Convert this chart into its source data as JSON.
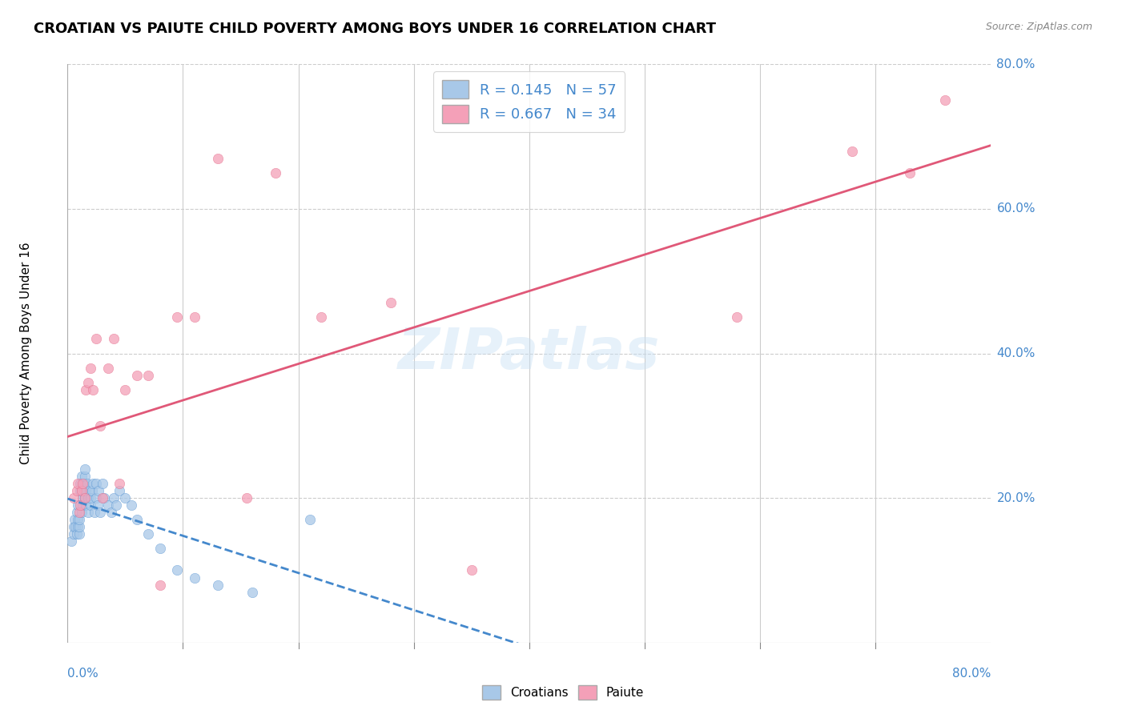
{
  "title": "CROATIAN VS PAIUTE CHILD POVERTY AMONG BOYS UNDER 16 CORRELATION CHART",
  "source": "Source: ZipAtlas.com",
  "ylabel": "Child Poverty Among Boys Under 16",
  "watermark": "ZIPatlas",
  "croatian_R": 0.145,
  "croatian_N": 57,
  "paiute_R": 0.667,
  "paiute_N": 34,
  "croatian_color": "#a8c8e8",
  "paiute_color": "#f4a0b8",
  "trendline_croatian_color": "#4488cc",
  "trendline_paiute_color": "#e05878",
  "xlim": [
    0,
    0.8
  ],
  "ylim": [
    0,
    0.8
  ],
  "xtick_positions": [
    0,
    0.8
  ],
  "xtick_labels": [
    "0.0%",
    "80.0%"
  ],
  "ytick_positions": [
    0.2,
    0.4,
    0.6,
    0.8
  ],
  "ytick_labels": [
    "20.0%",
    "40.0%",
    "60.0%",
    "80.0%"
  ],
  "grid_yticks": [
    0.2,
    0.4,
    0.6,
    0.8
  ],
  "grid_xticks": [
    0.1,
    0.2,
    0.3,
    0.4,
    0.5,
    0.6,
    0.7
  ],
  "background_color": "#ffffff",
  "grid_color": "#cccccc",
  "title_fontsize": 13,
  "label_fontsize": 11,
  "tick_color": "#4488cc",
  "legend_text_color": "#4488cc",
  "croatian_x": [
    0.003,
    0.005,
    0.005,
    0.006,
    0.007,
    0.008,
    0.008,
    0.009,
    0.009,
    0.009,
    0.01,
    0.01,
    0.01,
    0.011,
    0.011,
    0.012,
    0.012,
    0.013,
    0.013,
    0.014,
    0.014,
    0.015,
    0.015,
    0.015,
    0.016,
    0.016,
    0.017,
    0.018,
    0.018,
    0.019,
    0.02,
    0.02,
    0.021,
    0.022,
    0.023,
    0.025,
    0.025,
    0.026,
    0.027,
    0.028,
    0.03,
    0.032,
    0.035,
    0.038,
    0.04,
    0.042,
    0.045,
    0.05,
    0.055,
    0.06,
    0.07,
    0.08,
    0.095,
    0.11,
    0.13,
    0.16,
    0.21
  ],
  "croatian_y": [
    0.14,
    0.15,
    0.16,
    0.17,
    0.16,
    0.15,
    0.18,
    0.17,
    0.16,
    0.19,
    0.15,
    0.16,
    0.17,
    0.21,
    0.22,
    0.23,
    0.18,
    0.19,
    0.2,
    0.21,
    0.22,
    0.23,
    0.24,
    0.2,
    0.19,
    0.21,
    0.22,
    0.2,
    0.18,
    0.21,
    0.19,
    0.2,
    0.21,
    0.22,
    0.18,
    0.2,
    0.22,
    0.19,
    0.21,
    0.18,
    0.22,
    0.2,
    0.19,
    0.18,
    0.2,
    0.19,
    0.21,
    0.2,
    0.19,
    0.17,
    0.15,
    0.13,
    0.1,
    0.09,
    0.08,
    0.07,
    0.17
  ],
  "paiute_x": [
    0.005,
    0.008,
    0.009,
    0.01,
    0.011,
    0.012,
    0.013,
    0.015,
    0.016,
    0.018,
    0.02,
    0.022,
    0.025,
    0.028,
    0.03,
    0.035,
    0.04,
    0.045,
    0.05,
    0.06,
    0.07,
    0.08,
    0.095,
    0.11,
    0.13,
    0.155,
    0.18,
    0.22,
    0.28,
    0.35,
    0.58,
    0.68,
    0.73,
    0.76
  ],
  "paiute_y": [
    0.2,
    0.21,
    0.22,
    0.18,
    0.19,
    0.21,
    0.22,
    0.2,
    0.35,
    0.36,
    0.38,
    0.35,
    0.42,
    0.3,
    0.2,
    0.38,
    0.42,
    0.22,
    0.35,
    0.37,
    0.37,
    0.08,
    0.45,
    0.45,
    0.67,
    0.2,
    0.65,
    0.45,
    0.47,
    0.1,
    0.45,
    0.68,
    0.65,
    0.75
  ]
}
